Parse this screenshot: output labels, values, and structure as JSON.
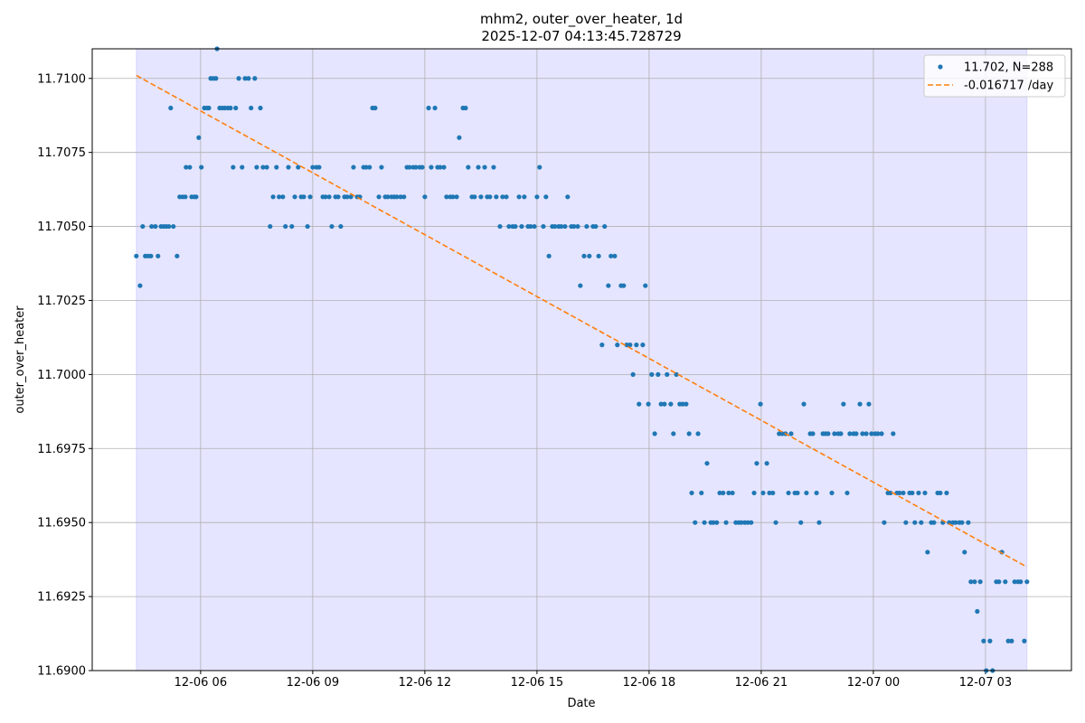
{
  "chart_data": {
    "type": "scatter",
    "title": "mhm2, outer_over_heater, 1d",
    "subtitle": "2025-12-07 04:13:45.728729",
    "x_label": "Date",
    "y_label": "outer_over_heater",
    "xlim": [
      3.1,
      29.3
    ],
    "ylim": [
      11.69,
      11.711
    ],
    "xticks": [
      {
        "value": 6,
        "label": "12-06 06"
      },
      {
        "value": 9,
        "label": "12-06 09"
      },
      {
        "value": 12,
        "label": "12-06 12"
      },
      {
        "value": 15,
        "label": "12-06 15"
      },
      {
        "value": 18,
        "label": "12-06 18"
      },
      {
        "value": 21,
        "label": "12-06 21"
      },
      {
        "value": 24,
        "label": "12-07 00"
      },
      {
        "value": 27,
        "label": "12-07 03"
      }
    ],
    "yticks": [
      {
        "value": 11.69,
        "label": "11.6900"
      },
      {
        "value": 11.6925,
        "label": "11.6925"
      },
      {
        "value": 11.695,
        "label": "11.6950"
      },
      {
        "value": 11.6975,
        "label": "11.6975"
      },
      {
        "value": 11.7,
        "label": "11.7000"
      },
      {
        "value": 11.7025,
        "label": "11.7025"
      },
      {
        "value": 11.705,
        "label": "11.7050"
      },
      {
        "value": 11.7075,
        "label": "11.7075"
      },
      {
        "value": 11.71,
        "label": "11.7100"
      }
    ],
    "grid": true,
    "legend": "upper right",
    "shaded_span": {
      "xlim": [
        4.28,
        28.11
      ],
      "color": "#0000ff"
    },
    "series": [
      {
        "name": "11.702, N=288",
        "type": "scatter",
        "color": "#1f77b4",
        "x": [
          4.28,
          4.38,
          4.45,
          4.52,
          4.6,
          4.67,
          4.69,
          4.79,
          4.86,
          4.94,
          5.01,
          5.08,
          5.15,
          5.2,
          5.27,
          5.37,
          5.44,
          5.52,
          5.59,
          5.61,
          5.71,
          5.76,
          5.83,
          5.88,
          5.95,
          6.02,
          6.1,
          6.17,
          6.22,
          6.27,
          6.34,
          6.41,
          6.44,
          6.51,
          6.58,
          6.65,
          6.73,
          6.8,
          6.87,
          6.94,
          7.02,
          7.11,
          7.19,
          7.28,
          7.35,
          7.45,
          7.5,
          7.6,
          7.67,
          7.77,
          7.86,
          7.94,
          8.03,
          8.1,
          8.2,
          8.27,
          8.35,
          8.44,
          8.52,
          8.61,
          8.69,
          8.76,
          8.86,
          8.93,
          9.0,
          9.1,
          9.17,
          9.27,
          9.34,
          9.44,
          9.51,
          9.61,
          9.68,
          9.75,
          9.85,
          9.92,
          10.02,
          10.09,
          10.19,
          10.26,
          10.36,
          10.43,
          10.52,
          10.6,
          10.67,
          10.77,
          10.84,
          10.94,
          11.01,
          11.11,
          11.18,
          11.25,
          11.35,
          11.44,
          11.52,
          11.59,
          11.69,
          11.76,
          11.86,
          11.93,
          12.0,
          12.1,
          12.17,
          12.27,
          12.34,
          12.41,
          12.51,
          12.58,
          12.68,
          12.75,
          12.85,
          12.92,
          13.02,
          13.09,
          13.16,
          13.26,
          13.33,
          13.43,
          13.5,
          13.6,
          13.67,
          13.74,
          13.84,
          13.91,
          14.01,
          14.08,
          14.18,
          14.25,
          14.35,
          14.42,
          14.52,
          14.59,
          14.66,
          14.76,
          14.83,
          14.93,
          15.0,
          15.07,
          15.17,
          15.24,
          15.32,
          15.41,
          15.48,
          15.58,
          15.65,
          15.75,
          15.82,
          15.92,
          15.99,
          16.09,
          16.16,
          16.26,
          16.33,
          16.4,
          16.5,
          16.57,
          16.65,
          16.74,
          16.81,
          16.91,
          16.98,
          17.08,
          17.15,
          17.25,
          17.32,
          17.4,
          17.49,
          17.57,
          17.66,
          17.73,
          17.83,
          17.9,
          17.98,
          18.07,
          18.15,
          18.24,
          18.32,
          18.41,
          18.48,
          18.58,
          18.65,
          18.73,
          18.82,
          18.9,
          18.99,
          19.07,
          19.14,
          19.23,
          19.31,
          19.4,
          19.48,
          19.55,
          19.65,
          19.72,
          19.81,
          19.89,
          19.98,
          20.06,
          20.13,
          20.23,
          20.32,
          20.4,
          20.47,
          20.56,
          20.64,
          20.73,
          20.81,
          20.88,
          20.98,
          21.05,
          21.15,
          21.22,
          21.31,
          21.39,
          21.48,
          21.56,
          21.65,
          21.73,
          21.8,
          21.9,
          21.97,
          22.06,
          22.14,
          22.21,
          22.31,
          22.38,
          22.48,
          22.55,
          22.65,
          22.72,
          22.79,
          22.89,
          22.96,
          23.06,
          23.13,
          23.2,
          23.3,
          23.37,
          23.47,
          23.54,
          23.64,
          23.71,
          23.81,
          23.88,
          23.95,
          24.05,
          24.12,
          24.22,
          24.29,
          24.39,
          24.46,
          24.53,
          24.63,
          24.7,
          24.8,
          24.87,
          24.97,
          25.04,
          25.11,
          25.21,
          25.28,
          25.38,
          25.45,
          25.55,
          25.62,
          25.72,
          25.79,
          25.86,
          25.96,
          26.03,
          26.13,
          26.2,
          26.3,
          26.37,
          26.44,
          26.54,
          26.61,
          26.71,
          26.78,
          26.86,
          26.95,
          27.02,
          27.12,
          27.19,
          27.29,
          27.36,
          27.44,
          27.53,
          27.61,
          27.7,
          27.78,
          27.87,
          27.94,
          28.04,
          28.11
        ],
        "values": [
          11.704,
          11.703,
          11.705,
          11.704,
          11.704,
          11.704,
          11.705,
          11.705,
          11.704,
          11.705,
          11.705,
          11.705,
          11.705,
          11.709,
          11.705,
          11.704,
          11.706,
          11.706,
          11.706,
          11.707,
          11.707,
          11.706,
          11.706,
          11.706,
          11.708,
          11.707,
          11.709,
          11.709,
          11.709,
          11.71,
          11.71,
          11.71,
          11.711,
          11.709,
          11.709,
          11.709,
          11.709,
          11.709,
          11.707,
          11.709,
          11.71,
          11.707,
          11.71,
          11.71,
          11.709,
          11.71,
          11.707,
          11.709,
          11.707,
          11.707,
          11.705,
          11.706,
          11.707,
          11.706,
          11.706,
          11.705,
          11.707,
          11.705,
          11.706,
          11.707,
          11.706,
          11.706,
          11.705,
          11.706,
          11.707,
          11.707,
          11.707,
          11.706,
          11.706,
          11.706,
          11.705,
          11.706,
          11.706,
          11.705,
          11.706,
          11.706,
          11.706,
          11.707,
          11.706,
          11.706,
          11.707,
          11.707,
          11.707,
          11.709,
          11.709,
          11.706,
          11.707,
          11.706,
          11.706,
          11.706,
          11.706,
          11.706,
          11.706,
          11.706,
          11.707,
          11.707,
          11.707,
          11.707,
          11.707,
          11.707,
          11.706,
          11.709,
          11.707,
          11.709,
          11.707,
          11.707,
          11.707,
          11.706,
          11.706,
          11.706,
          11.706,
          11.708,
          11.709,
          11.709,
          11.707,
          11.706,
          11.706,
          11.707,
          11.706,
          11.707,
          11.706,
          11.706,
          11.707,
          11.706,
          11.705,
          11.706,
          11.706,
          11.705,
          11.705,
          11.705,
          11.706,
          11.705,
          11.706,
          11.705,
          11.705,
          11.705,
          11.706,
          11.707,
          11.705,
          11.706,
          11.704,
          11.705,
          11.705,
          11.705,
          11.705,
          11.705,
          11.706,
          11.705,
          11.705,
          11.705,
          11.703,
          11.704,
          11.705,
          11.704,
          11.705,
          11.705,
          11.704,
          11.701,
          11.705,
          11.703,
          11.704,
          11.704,
          11.701,
          11.703,
          11.703,
          11.701,
          11.701,
          11.7,
          11.701,
          11.699,
          11.701,
          11.703,
          11.699,
          11.7,
          11.698,
          11.7,
          11.699,
          11.699,
          11.7,
          11.699,
          11.698,
          11.7,
          11.699,
          11.699,
          11.699,
          11.698,
          11.696,
          11.695,
          11.698,
          11.696,
          11.695,
          11.697,
          11.695,
          11.695,
          11.695,
          11.696,
          11.696,
          11.695,
          11.696,
          11.696,
          11.695,
          11.695,
          11.695,
          11.695,
          11.695,
          11.695,
          11.696,
          11.697,
          11.699,
          11.696,
          11.697,
          11.696,
          11.696,
          11.695,
          11.698,
          11.698,
          11.698,
          11.696,
          11.698,
          11.696,
          11.696,
          11.695,
          11.699,
          11.696,
          11.698,
          11.698,
          11.696,
          11.695,
          11.698,
          11.698,
          11.698,
          11.696,
          11.698,
          11.698,
          11.698,
          11.699,
          11.696,
          11.698,
          11.698,
          11.698,
          11.699,
          11.698,
          11.698,
          11.699,
          11.698,
          11.698,
          11.698,
          11.698,
          11.695,
          11.696,
          11.696,
          11.698,
          11.696,
          11.696,
          11.696,
          11.695,
          11.696,
          11.696,
          11.695,
          11.696,
          11.695,
          11.696,
          11.694,
          11.695,
          11.695,
          11.696,
          11.696,
          11.695,
          11.696,
          11.695,
          11.695,
          11.695,
          11.695,
          11.695,
          11.694,
          11.695,
          11.693,
          11.693,
          11.692,
          11.693,
          11.691,
          11.69,
          11.691,
          11.69,
          11.693,
          11.693,
          11.694,
          11.693,
          11.691,
          11.691,
          11.693,
          11.693,
          11.693,
          11.691,
          11.693
        ]
      },
      {
        "name": "-0.016717 /day",
        "type": "line",
        "color": "#ff7f0e",
        "dash": true,
        "x": [
          4.28,
          28.11
        ],
        "values": [
          11.7101,
          11.6935
        ]
      }
    ]
  }
}
